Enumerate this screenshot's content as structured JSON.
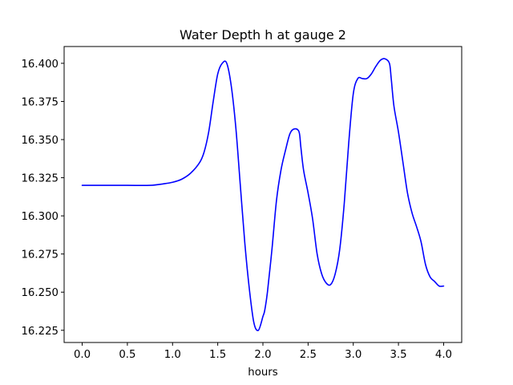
{
  "chart_data": {
    "type": "line",
    "title": "Water Depth h at gauge 2",
    "xlabel": "hours",
    "ylabel": "",
    "xlim": [
      -0.2,
      4.2
    ],
    "ylim": [
      16.217,
      16.411
    ],
    "grid": false,
    "xticks": [
      0.0,
      0.5,
      1.0,
      1.5,
      2.0,
      2.5,
      3.0,
      3.5,
      4.0
    ],
    "xtick_labels": [
      "0.0",
      "0.5",
      "1.0",
      "1.5",
      "2.0",
      "2.5",
      "3.0",
      "3.5",
      "4.0"
    ],
    "yticks": [
      16.225,
      16.25,
      16.275,
      16.3,
      16.325,
      16.35,
      16.375,
      16.4
    ],
    "ytick_labels": [
      "16.225",
      "16.250",
      "16.275",
      "16.300",
      "16.325",
      "16.350",
      "16.375",
      "16.400"
    ],
    "line_color": "#0000ff",
    "series": [
      {
        "x": [
          0.0,
          0.25,
          0.5,
          0.75,
          0.9,
          1.0,
          1.1,
          1.2,
          1.3,
          1.35,
          1.4,
          1.45,
          1.5,
          1.55,
          1.6,
          1.65,
          1.7,
          1.75,
          1.8,
          1.85,
          1.9,
          1.95,
          2.0,
          2.02,
          2.05,
          2.1,
          2.15,
          2.2,
          2.25,
          2.3,
          2.35,
          2.4,
          2.42,
          2.45,
          2.5,
          2.55,
          2.6,
          2.65,
          2.7,
          2.75,
          2.8,
          2.85,
          2.9,
          2.95,
          3.0,
          3.05,
          3.1,
          3.15,
          3.2,
          3.25,
          3.3,
          3.35,
          3.4,
          3.42,
          3.45,
          3.5,
          3.55,
          3.6,
          3.65,
          3.7,
          3.75,
          3.8,
          3.85,
          3.9,
          3.95,
          4.0
        ],
        "y": [
          16.32,
          16.32,
          16.32,
          16.32,
          16.321,
          16.322,
          16.324,
          16.328,
          16.335,
          16.342,
          16.355,
          16.375,
          16.393,
          16.4,
          16.4,
          16.385,
          16.358,
          16.32,
          16.282,
          16.252,
          16.23,
          16.225,
          16.234,
          16.238,
          16.25,
          16.278,
          16.31,
          16.33,
          16.343,
          16.354,
          16.357,
          16.355,
          16.345,
          16.33,
          16.315,
          16.298,
          16.275,
          16.262,
          16.256,
          16.255,
          16.262,
          16.278,
          16.308,
          16.348,
          16.38,
          16.39,
          16.39,
          16.39,
          16.393,
          16.398,
          16.402,
          16.403,
          16.4,
          16.39,
          16.372,
          16.355,
          16.335,
          16.315,
          16.302,
          16.293,
          16.283,
          16.268,
          16.26,
          16.257,
          16.254,
          16.254
        ]
      }
    ]
  }
}
